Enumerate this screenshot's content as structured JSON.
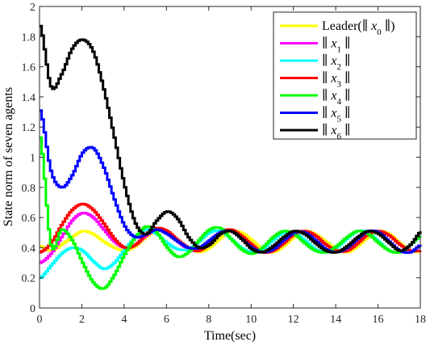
{
  "chart_data": {
    "type": "line",
    "title": "",
    "xlabel": "Time(sec)",
    "ylabel": "State norm of seven agents",
    "xlim": [
      0,
      18
    ],
    "ylim": [
      0,
      2
    ],
    "xticks": [
      "0",
      "2",
      "4",
      "6",
      "8",
      "10",
      "12",
      "14",
      "16",
      "18"
    ],
    "yticks": [
      "0",
      "0.2",
      "0.4",
      "0.6",
      "0.8",
      "1",
      "1.2",
      "1.4",
      "1.6",
      "1.8",
      "2"
    ],
    "grid": false,
    "legend_position": "top-right",
    "x": [
      0,
      0.5,
      1,
      1.5,
      2,
      2.5,
      3,
      3.5,
      4,
      4.5,
      5,
      5.5,
      6,
      6.5,
      7,
      7.5,
      8,
      8.5,
      9,
      9.5,
      10,
      10.5,
      11,
      11.5,
      12,
      12.5,
      13,
      13.5,
      14,
      14.5,
      15,
      15.5,
      16,
      16.5,
      17,
      17.5,
      18
    ],
    "series": [
      {
        "name": "Leader(∥ x0 ∥)",
        "label_pre": "Leader(∥ ",
        "label_var": "x",
        "label_sub": "0",
        "label_post": " ∥)",
        "color": "#ffff00",
        "values": [
          0.41,
          0.38,
          0.42,
          0.47,
          0.51,
          0.49,
          0.44,
          0.4,
          0.38,
          0.41,
          0.47,
          0.51,
          0.5,
          0.45,
          0.4,
          0.37,
          0.4,
          0.46,
          0.51,
          0.5,
          0.45,
          0.39,
          0.37,
          0.41,
          0.47,
          0.51,
          0.49,
          0.44,
          0.39,
          0.37,
          0.41,
          0.47,
          0.51,
          0.49,
          0.43,
          0.38,
          0.37
        ]
      },
      {
        "name": "∥ x1 ∥",
        "label_pre": "∥ ",
        "label_var": "x",
        "label_sub": "1",
        "label_post": " ∥",
        "color": "#ff00ff",
        "values": [
          0.3,
          0.36,
          0.47,
          0.58,
          0.63,
          0.6,
          0.52,
          0.44,
          0.4,
          0.42,
          0.48,
          0.52,
          0.5,
          0.44,
          0.39,
          0.38,
          0.43,
          0.49,
          0.51,
          0.47,
          0.41,
          0.37,
          0.38,
          0.43,
          0.49,
          0.51,
          0.48,
          0.42,
          0.38,
          0.38,
          0.43,
          0.49,
          0.51,
          0.48,
          0.42,
          0.38,
          0.38
        ]
      },
      {
        "name": "∥ x2 ∥",
        "label_pre": "∥ ",
        "label_var": "x",
        "label_sub": "2",
        "label_post": " ∥",
        "color": "#00ffff",
        "values": [
          0.2,
          0.28,
          0.36,
          0.4,
          0.38,
          0.31,
          0.26,
          0.3,
          0.39,
          0.47,
          0.52,
          0.49,
          0.43,
          0.39,
          0.39,
          0.44,
          0.5,
          0.51,
          0.46,
          0.4,
          0.37,
          0.39,
          0.45,
          0.5,
          0.5,
          0.45,
          0.39,
          0.37,
          0.4,
          0.46,
          0.51,
          0.5,
          0.44,
          0.38,
          0.37,
          0.42,
          0.48
        ]
      },
      {
        "name": "∥ x3 ∥",
        "label_pre": "∥ ",
        "label_var": "x",
        "label_sub": "3",
        "label_post": " ∥",
        "color": "#ff0000",
        "values": [
          0.37,
          0.43,
          0.55,
          0.65,
          0.69,
          0.65,
          0.56,
          0.46,
          0.4,
          0.42,
          0.49,
          0.53,
          0.51,
          0.45,
          0.4,
          0.38,
          0.43,
          0.5,
          0.52,
          0.48,
          0.42,
          0.37,
          0.38,
          0.43,
          0.49,
          0.51,
          0.48,
          0.42,
          0.38,
          0.38,
          0.43,
          0.49,
          0.51,
          0.48,
          0.42,
          0.38,
          0.38
        ]
      },
      {
        "name": "∥ x4 ∥",
        "label_pre": "∥ ",
        "label_var": "x",
        "label_sub": "4",
        "label_post": " ∥",
        "color": "#00ff00",
        "values": [
          1.13,
          0.42,
          0.52,
          0.45,
          0.3,
          0.17,
          0.13,
          0.22,
          0.36,
          0.47,
          0.54,
          0.5,
          0.4,
          0.34,
          0.37,
          0.45,
          0.52,
          0.53,
          0.46,
          0.39,
          0.36,
          0.4,
          0.47,
          0.51,
          0.49,
          0.43,
          0.38,
          0.37,
          0.41,
          0.47,
          0.51,
          0.49,
          0.43,
          0.38,
          0.37,
          0.42,
          0.48
        ]
      },
      {
        "name": "∥ x5 ∥",
        "label_pre": "∥ ",
        "label_var": "x",
        "label_sub": "5",
        "label_post": " ∥",
        "color": "#0000ff",
        "values": [
          1.31,
          0.91,
          0.8,
          0.88,
          1.03,
          1.06,
          0.93,
          0.72,
          0.54,
          0.47,
          0.49,
          0.52,
          0.49,
          0.44,
          0.4,
          0.4,
          0.45,
          0.5,
          0.51,
          0.46,
          0.4,
          0.37,
          0.39,
          0.45,
          0.5,
          0.5,
          0.45,
          0.39,
          0.37,
          0.4,
          0.46,
          0.51,
          0.5,
          0.44,
          0.38,
          0.37,
          0.42
        ]
      },
      {
        "name": "∥ x6 ∥",
        "label_pre": "∥ ",
        "label_var": "x",
        "label_sub": "6",
        "label_post": " ∥",
        "color": "#000000",
        "values": [
          1.87,
          1.47,
          1.55,
          1.72,
          1.78,
          1.7,
          1.45,
          1.13,
          0.8,
          0.56,
          0.49,
          0.58,
          0.64,
          0.59,
          0.47,
          0.4,
          0.42,
          0.49,
          0.51,
          0.46,
          0.39,
          0.37,
          0.41,
          0.47,
          0.51,
          0.49,
          0.43,
          0.38,
          0.37,
          0.41,
          0.47,
          0.51,
          0.49,
          0.43,
          0.38,
          0.42,
          0.51
        ]
      }
    ]
  }
}
